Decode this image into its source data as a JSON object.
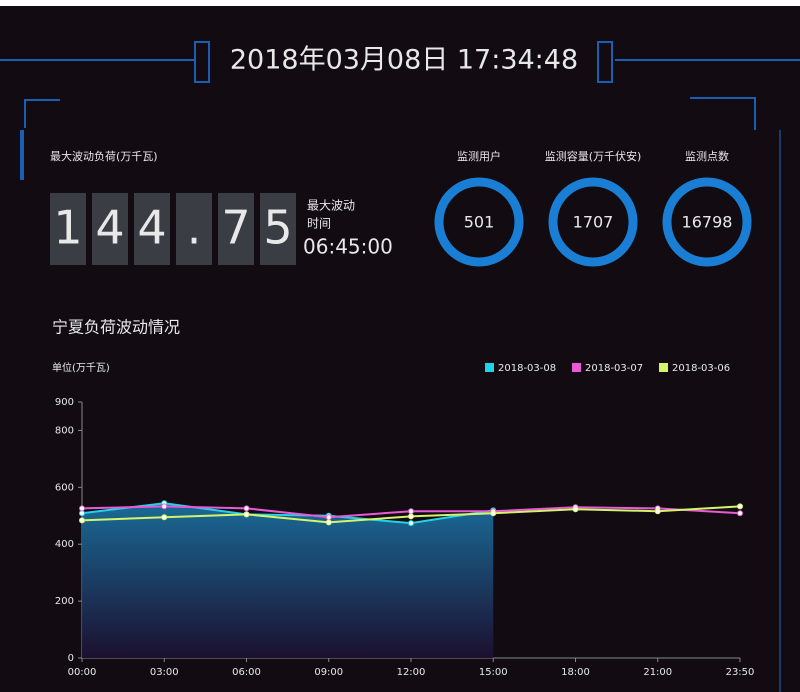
{
  "header": {
    "datetime": "2018年03月08日 17:34:48"
  },
  "max_load": {
    "label": "最大波动负荷(万千瓦)",
    "digits": [
      "1",
      "4",
      "4",
      ".",
      "7",
      "5"
    ],
    "time_label": [
      "最大波动",
      "时间"
    ],
    "time": "06:45:00"
  },
  "stats": [
    {
      "label": "监测用户",
      "value": 501
    },
    {
      "label": "监测容量(万千伏安)",
      "value": 1707
    },
    {
      "label": "监测点数",
      "value": 16798
    }
  ],
  "chart_data": {
    "type": "line",
    "title": "宁夏负荷波动情况",
    "y_label": "单位(万千瓦)",
    "categories": [
      "00:00",
      "03:00",
      "06:00",
      "09:00",
      "12:00",
      "15:00",
      "18:00",
      "21:00",
      "23:50"
    ],
    "series": [
      {
        "name": "2018-03-08",
        "color": "#22d3e8",
        "values": [
          509,
          544,
          505,
          500,
          474,
          519,
          null,
          null,
          null
        ],
        "area": true
      },
      {
        "name": "2018-03-07",
        "color": "#e85ad6",
        "values": [
          526,
          533,
          526,
          495,
          516,
          516,
          530,
          526,
          509
        ]
      },
      {
        "name": "2018-03-06",
        "color": "#d4f56a",
        "values": [
          484,
          495,
          505,
          477,
          498,
          509,
          523,
          516,
          533
        ]
      }
    ],
    "ylim": [
      0,
      900
    ],
    "yticks": [
      0,
      200,
      400,
      600,
      800,
      900
    ],
    "legend": "top-right"
  }
}
